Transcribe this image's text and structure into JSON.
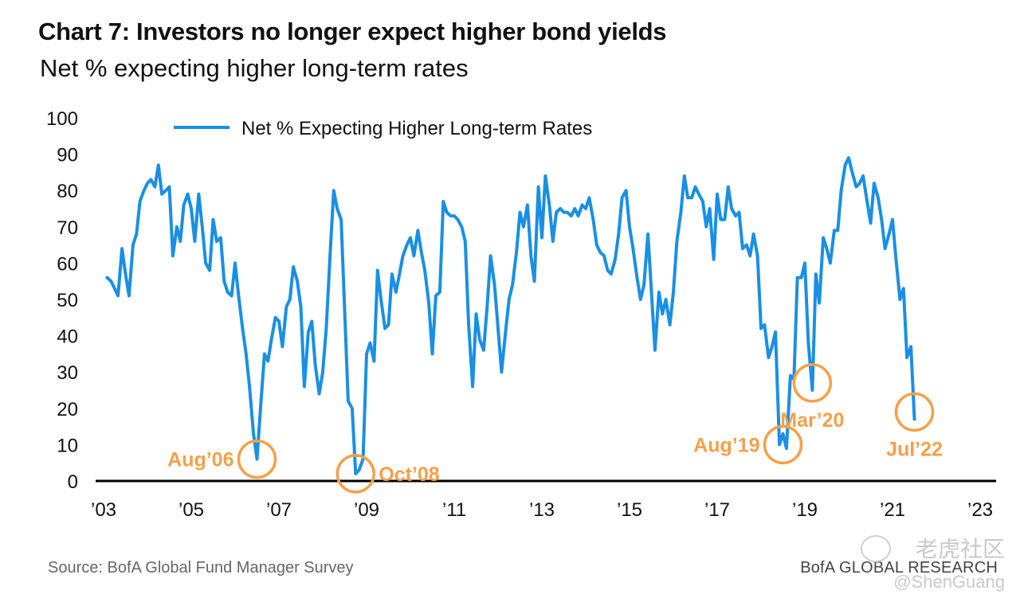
{
  "header": {
    "title": "Chart 7: Investors no longer expect higher bond yields",
    "subtitle": "Net % expecting higher long-term rates"
  },
  "footer": {
    "source": "Source: BofA Global Fund Manager Survey",
    "brand": "BofA GLOBAL RESEARCH"
  },
  "watermark": {
    "logo_text": "老虎社区",
    "user": "@ShenGuang"
  },
  "colors": {
    "series": "#1a8fe3",
    "annotation": "#f5a04a",
    "axis": "#000000",
    "text": "#111111"
  },
  "chart_data": {
    "type": "line",
    "title": "Chart 7: Investors no longer expect higher bond yields",
    "subtitle": "Net % expecting higher long-term rates",
    "xlabel": "",
    "ylabel": "",
    "ylim": [
      0,
      100
    ],
    "xlim": [
      2003,
      2023
    ],
    "yticks": [
      "0",
      "10",
      "20",
      "30",
      "40",
      "50",
      "60",
      "70",
      "80",
      "90",
      "100"
    ],
    "xticks": [
      {
        "x": 2003,
        "label": "’03"
      },
      {
        "x": 2005,
        "label": "’05"
      },
      {
        "x": 2007,
        "label": "’07"
      },
      {
        "x": 2009,
        "label": "’09"
      },
      {
        "x": 2011,
        "label": "’11"
      },
      {
        "x": 2013,
        "label": "’13"
      },
      {
        "x": 2015,
        "label": "’15"
      },
      {
        "x": 2017,
        "label": "’17"
      },
      {
        "x": 2019,
        "label": "’19"
      },
      {
        "x": 2021,
        "label": "’21"
      },
      {
        "x": 2023,
        "label": "’23"
      }
    ],
    "grid": false,
    "legend": {
      "position": "top-left",
      "label": "Net % Expecting Higher Long-term Rates"
    },
    "series": [
      {
        "name": "Net % Expecting Higher Long-term Rates",
        "points": [
          [
            2003.08,
            56
          ],
          [
            2003.17,
            55
          ],
          [
            2003.25,
            53
          ],
          [
            2003.33,
            51
          ],
          [
            2003.42,
            64
          ],
          [
            2003.5,
            57
          ],
          [
            2003.58,
            51
          ],
          [
            2003.67,
            65
          ],
          [
            2003.75,
            68
          ],
          [
            2003.83,
            77
          ],
          [
            2003.92,
            80
          ],
          [
            2004.0,
            82
          ],
          [
            2004.08,
            83
          ],
          [
            2004.17,
            81
          ],
          [
            2004.25,
            87
          ],
          [
            2004.33,
            79
          ],
          [
            2004.42,
            80
          ],
          [
            2004.5,
            81
          ],
          [
            2004.58,
            62
          ],
          [
            2004.67,
            70
          ],
          [
            2004.75,
            66
          ],
          [
            2004.83,
            76
          ],
          [
            2004.92,
            79
          ],
          [
            2005.0,
            75
          ],
          [
            2005.08,
            66
          ],
          [
            2005.17,
            79
          ],
          [
            2005.25,
            70
          ],
          [
            2005.33,
            60
          ],
          [
            2005.42,
            58
          ],
          [
            2005.5,
            72
          ],
          [
            2005.58,
            66
          ],
          [
            2005.67,
            67
          ],
          [
            2005.75,
            55
          ],
          [
            2005.83,
            52
          ],
          [
            2005.92,
            51
          ],
          [
            2006.0,
            60
          ],
          [
            2006.08,
            51
          ],
          [
            2006.17,
            42
          ],
          [
            2006.25,
            35
          ],
          [
            2006.33,
            26
          ],
          [
            2006.42,
            13
          ],
          [
            2006.5,
            6
          ],
          [
            2006.58,
            20
          ],
          [
            2006.67,
            35
          ],
          [
            2006.75,
            33
          ],
          [
            2006.83,
            39
          ],
          [
            2006.92,
            45
          ],
          [
            2007.0,
            44
          ],
          [
            2007.08,
            37
          ],
          [
            2007.17,
            48
          ],
          [
            2007.25,
            50
          ],
          [
            2007.33,
            59
          ],
          [
            2007.42,
            55
          ],
          [
            2007.5,
            48
          ],
          [
            2007.58,
            26
          ],
          [
            2007.67,
            41
          ],
          [
            2007.75,
            44
          ],
          [
            2007.83,
            32
          ],
          [
            2007.92,
            24
          ],
          [
            2008.0,
            30
          ],
          [
            2008.08,
            42
          ],
          [
            2008.17,
            63
          ],
          [
            2008.25,
            80
          ],
          [
            2008.33,
            75
          ],
          [
            2008.42,
            72
          ],
          [
            2008.5,
            47
          ],
          [
            2008.58,
            22
          ],
          [
            2008.67,
            20
          ],
          [
            2008.75,
            2
          ],
          [
            2008.83,
            3
          ],
          [
            2008.92,
            6
          ],
          [
            2009.0,
            35
          ],
          [
            2009.08,
            38
          ],
          [
            2009.17,
            33
          ],
          [
            2009.25,
            58
          ],
          [
            2009.33,
            50
          ],
          [
            2009.42,
            42
          ],
          [
            2009.5,
            43
          ],
          [
            2009.58,
            57
          ],
          [
            2009.67,
            52
          ],
          [
            2009.75,
            57
          ],
          [
            2009.83,
            62
          ],
          [
            2009.92,
            65
          ],
          [
            2010.0,
            67
          ],
          [
            2010.08,
            62
          ],
          [
            2010.17,
            69
          ],
          [
            2010.25,
            63
          ],
          [
            2010.33,
            58
          ],
          [
            2010.42,
            49
          ],
          [
            2010.5,
            35
          ],
          [
            2010.58,
            51
          ],
          [
            2010.67,
            52
          ],
          [
            2010.75,
            77
          ],
          [
            2010.83,
            74
          ],
          [
            2010.92,
            73
          ],
          [
            2011.0,
            73
          ],
          [
            2011.08,
            72
          ],
          [
            2011.17,
            70
          ],
          [
            2011.25,
            66
          ],
          [
            2011.33,
            43
          ],
          [
            2011.42,
            26
          ],
          [
            2011.5,
            46
          ],
          [
            2011.58,
            39
          ],
          [
            2011.67,
            36
          ],
          [
            2011.75,
            48
          ],
          [
            2011.83,
            62
          ],
          [
            2011.92,
            54
          ],
          [
            2012.0,
            42
          ],
          [
            2012.08,
            30
          ],
          [
            2012.17,
            41
          ],
          [
            2012.25,
            50
          ],
          [
            2012.33,
            54
          ],
          [
            2012.42,
            63
          ],
          [
            2012.5,
            74
          ],
          [
            2012.58,
            70
          ],
          [
            2012.67,
            76
          ],
          [
            2012.75,
            62
          ],
          [
            2012.83,
            55
          ],
          [
            2012.92,
            81
          ],
          [
            2013.0,
            67
          ],
          [
            2013.08,
            84
          ],
          [
            2013.17,
            76
          ],
          [
            2013.25,
            66
          ],
          [
            2013.33,
            74
          ],
          [
            2013.42,
            75
          ],
          [
            2013.5,
            74
          ],
          [
            2013.58,
            74
          ],
          [
            2013.67,
            73
          ],
          [
            2013.75,
            75
          ],
          [
            2013.83,
            73
          ],
          [
            2013.92,
            76
          ],
          [
            2014.0,
            75
          ],
          [
            2014.08,
            78
          ],
          [
            2014.17,
            72
          ],
          [
            2014.25,
            65
          ],
          [
            2014.33,
            63
          ],
          [
            2014.42,
            62
          ],
          [
            2014.5,
            58
          ],
          [
            2014.58,
            57
          ],
          [
            2014.67,
            61
          ],
          [
            2014.75,
            68
          ],
          [
            2014.83,
            78
          ],
          [
            2014.92,
            80
          ],
          [
            2015.0,
            70
          ],
          [
            2015.08,
            64
          ],
          [
            2015.17,
            56
          ],
          [
            2015.25,
            50
          ],
          [
            2015.33,
            54
          ],
          [
            2015.42,
            68
          ],
          [
            2015.5,
            52
          ],
          [
            2015.58,
            36
          ],
          [
            2015.67,
            52
          ],
          [
            2015.75,
            46
          ],
          [
            2015.83,
            50
          ],
          [
            2015.92,
            43
          ],
          [
            2016.0,
            52
          ],
          [
            2016.08,
            66
          ],
          [
            2016.17,
            74
          ],
          [
            2016.25,
            84
          ],
          [
            2016.33,
            78
          ],
          [
            2016.42,
            78
          ],
          [
            2016.5,
            81
          ],
          [
            2016.58,
            79
          ],
          [
            2016.67,
            77
          ],
          [
            2016.75,
            70
          ],
          [
            2016.83,
            75
          ],
          [
            2016.92,
            61
          ],
          [
            2017.0,
            79
          ],
          [
            2017.08,
            72
          ],
          [
            2017.17,
            72
          ],
          [
            2017.25,
            81
          ],
          [
            2017.33,
            75
          ],
          [
            2017.42,
            73
          ],
          [
            2017.5,
            74
          ],
          [
            2017.58,
            64
          ],
          [
            2017.67,
            65
          ],
          [
            2017.75,
            62
          ],
          [
            2017.83,
            68
          ],
          [
            2017.92,
            62
          ],
          [
            2018.0,
            42
          ],
          [
            2018.08,
            43
          ],
          [
            2018.17,
            34
          ],
          [
            2018.25,
            37
          ],
          [
            2018.33,
            41
          ],
          [
            2018.42,
            10
          ],
          [
            2018.5,
            13
          ],
          [
            2018.58,
            9
          ],
          [
            2018.67,
            29
          ],
          [
            2018.75,
            28
          ],
          [
            2018.83,
            56
          ],
          [
            2018.92,
            56
          ],
          [
            2019.0,
            60
          ],
          [
            2019.08,
            38
          ],
          [
            2019.17,
            25
          ],
          [
            2019.25,
            57
          ],
          [
            2019.33,
            49
          ],
          [
            2019.42,
            67
          ],
          [
            2019.5,
            64
          ],
          [
            2019.58,
            60
          ],
          [
            2019.67,
            69
          ],
          [
            2019.75,
            69
          ],
          [
            2019.83,
            80
          ],
          [
            2019.92,
            87
          ],
          [
            2020.0,
            89
          ],
          [
            2020.08,
            85
          ],
          [
            2020.17,
            81
          ],
          [
            2020.25,
            82
          ],
          [
            2020.33,
            84
          ],
          [
            2020.42,
            77
          ],
          [
            2020.5,
            71
          ],
          [
            2020.58,
            82
          ],
          [
            2020.67,
            78
          ],
          [
            2020.75,
            72
          ],
          [
            2020.83,
            64
          ],
          [
            2020.92,
            68
          ],
          [
            2021.0,
            72
          ],
          [
            2021.08,
            61
          ],
          [
            2021.17,
            50
          ],
          [
            2021.25,
            53
          ],
          [
            2021.33,
            34
          ],
          [
            2021.42,
            37
          ],
          [
            2021.5,
            17
          ]
        ]
      }
    ],
    "annotations": [
      {
        "label": "Aug’06",
        "x": 2006.5,
        "y": 6,
        "label_side": "left"
      },
      {
        "label": "Oct’08",
        "x": 2008.75,
        "y": 2,
        "label_side": "right"
      },
      {
        "label": "Aug’19",
        "x": 2018.5,
        "y": 10,
        "label_side": "left"
      },
      {
        "label": "Mar’20",
        "x": 2019.17,
        "y": 27,
        "label_side": "below"
      },
      {
        "label": "Jul’22",
        "x": 2021.5,
        "y": 19,
        "label_side": "below"
      }
    ]
  }
}
